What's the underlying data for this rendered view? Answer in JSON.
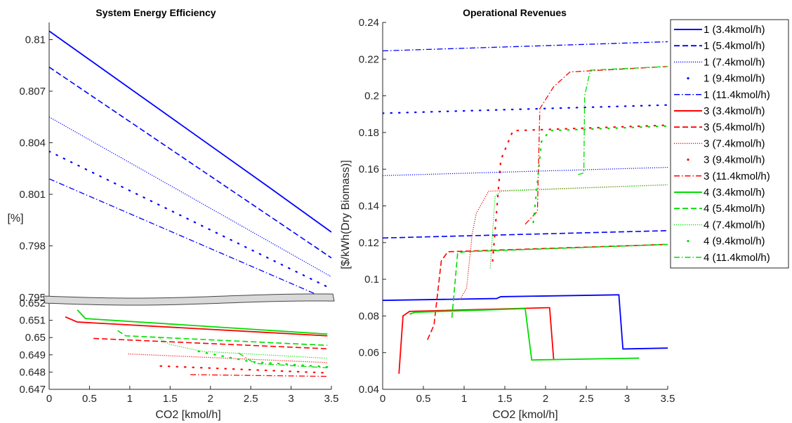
{
  "chart_data": [
    {
      "type": "line",
      "title": "System Energy Efficiency",
      "xlabel": "CO2 [kmol/h]",
      "ylabel": "[%]",
      "xlim": [
        0,
        3.5
      ],
      "x_ticks": [
        "0",
        "0.5",
        "1",
        "1.5",
        "2",
        "2.5",
        "3",
        "3.5"
      ],
      "broken_y_axis": true,
      "upper_ylim": [
        0.795,
        0.811
      ],
      "upper_y_ticks": [
        "0.795",
        "0.798",
        "0.801",
        "0.804",
        "0.807",
        "0.81"
      ],
      "lower_ylim": [
        0.647,
        0.652
      ],
      "lower_y_ticks": [
        "0.647",
        "0.648",
        "0.649",
        "0.65",
        "0.651",
        "0.652"
      ],
      "series": [
        {
          "name": "1 (3.4kmol/h)",
          "color": "#0000FF",
          "dash": "solid",
          "panel": "upper",
          "x": [
            0,
            2.7,
            3.5
          ],
          "y": [
            0.8105,
            0.8015,
            0.7988
          ]
        },
        {
          "name": "1 (5.4kmol/h)",
          "color": "#0000FF",
          "dash": "dashed",
          "panel": "upper",
          "x": [
            0,
            3.5
          ],
          "y": [
            0.8084,
            0.7973
          ]
        },
        {
          "name": "1 (7.4kmol/h)",
          "color": "#0000FF",
          "dash": "dotted",
          "panel": "upper",
          "x": [
            0,
            3.5
          ],
          "y": [
            0.8055,
            0.7962
          ]
        },
        {
          "name": "1 (9.4kmol/h)",
          "color": "#0000FF",
          "dash": "sparse-dotted",
          "panel": "upper",
          "x": [
            0,
            3.5
          ],
          "y": [
            0.8035,
            0.7955
          ]
        },
        {
          "name": "1 (11.4kmol/h)",
          "color": "#0000FF",
          "dash": "dashdot",
          "panel": "upper",
          "x": [
            0,
            3.5
          ],
          "y": [
            0.8019,
            0.7948
          ]
        },
        {
          "name": "3 (3.4kmol/h)",
          "color": "#FF0000",
          "dash": "solid",
          "panel": "lower",
          "x": [
            0.2,
            0.35,
            3.45
          ],
          "y": [
            0.6512,
            0.6509,
            0.6501
          ]
        },
        {
          "name": "3 (5.4kmol/h)",
          "color": "#FF0000",
          "dash": "dashed",
          "panel": "lower",
          "x": [
            0.55,
            3.45
          ],
          "y": [
            0.64995,
            0.64935
          ]
        },
        {
          "name": "3 (7.4kmol/h)",
          "color": "#FF0000",
          "dash": "dotted",
          "panel": "lower",
          "x": [
            0.98,
            3.45
          ],
          "y": [
            0.64905,
            0.64855
          ]
        },
        {
          "name": "3 (9.4kmol/h)",
          "color": "#FF0000",
          "dash": "sparse-dotted",
          "panel": "lower",
          "x": [
            1.38,
            3.45
          ],
          "y": [
            0.64835,
            0.64795
          ]
        },
        {
          "name": "3 (11.4kmol/h)",
          "color": "#FF0000",
          "dash": "dashdot",
          "panel": "lower",
          "x": [
            1.75,
            3.45
          ],
          "y": [
            0.64785,
            0.64775
          ]
        },
        {
          "name": "4 (3.4kmol/h)",
          "color": "#00DD00",
          "dash": "solid",
          "panel": "lower",
          "x": [
            0.35,
            0.45,
            3.45
          ],
          "y": [
            0.6516,
            0.6511,
            0.6502
          ]
        },
        {
          "name": "4 (5.4kmol/h)",
          "color": "#00DD00",
          "dash": "dashed",
          "panel": "lower",
          "x": [
            0.85,
            0.95,
            3.45
          ],
          "y": [
            0.6504,
            0.6501,
            0.64955
          ]
        },
        {
          "name": "4 (7.4kmol/h)",
          "color": "#00DD00",
          "dash": "dotted",
          "panel": "lower",
          "x": [
            1.35,
            1.5,
            1.9,
            3.45
          ],
          "y": [
            0.65,
            0.6496,
            0.6492,
            0.6488
          ]
        },
        {
          "name": "4 (9.4kmol/h)",
          "color": "#00DD00",
          "dash": "sparse-dotted",
          "panel": "lower",
          "x": [
            1.85,
            2.5,
            3.45
          ],
          "y": [
            0.6492,
            0.6486,
            0.6483
          ]
        },
        {
          "name": "4 (11.4kmol/h)",
          "color": "#00DD00",
          "dash": "dashdot",
          "panel": "lower",
          "x": [
            2.35,
            2.55,
            3.45
          ],
          "y": [
            0.6491,
            0.6485,
            0.64825
          ]
        }
      ]
    },
    {
      "type": "line",
      "title": "Operational Revenues",
      "xlabel": "CO2 [kmol/h]",
      "ylabel": "[$/kWh(Dry Biomass)]",
      "xlim": [
        0,
        3.5
      ],
      "ylim": [
        0.04,
        0.24
      ],
      "x_ticks": [
        "0",
        "0.5",
        "1",
        "1.5",
        "2",
        "2.5",
        "3",
        "3.5"
      ],
      "y_ticks": [
        "0.04",
        "0.06",
        "0.08",
        "0.1",
        "0.12",
        "0.14",
        "0.16",
        "0.18",
        "0.2",
        "0.22",
        "0.24"
      ],
      "series": [
        {
          "name": "1 (3.4kmol/h)",
          "color": "#0000FF",
          "dash": "solid",
          "x": [
            0,
            1.4,
            1.45,
            2.88,
            2.9,
            2.95,
            3.5
          ],
          "y": [
            0.0885,
            0.0895,
            0.0905,
            0.0915,
            0.0915,
            0.062,
            0.0625
          ]
        },
        {
          "name": "1 (5.4kmol/h)",
          "color": "#0000FF",
          "dash": "dashed",
          "x": [
            0,
            3.5
          ],
          "y": [
            0.1225,
            0.1265
          ]
        },
        {
          "name": "1 (7.4kmol/h)",
          "color": "#0000FF",
          "dash": "dotted",
          "x": [
            0,
            3.5
          ],
          "y": [
            0.1565,
            0.161
          ]
        },
        {
          "name": "1 (9.4kmol/h)",
          "color": "#0000FF",
          "dash": "sparse-dotted",
          "x": [
            0,
            3.5
          ],
          "y": [
            0.1905,
            0.195
          ]
        },
        {
          "name": "1 (11.4kmol/h)",
          "color": "#0000FF",
          "dash": "dashdot",
          "x": [
            0,
            3.5
          ],
          "y": [
            0.2245,
            0.2295
          ]
        },
        {
          "name": "3 (3.4kmol/h)",
          "color": "#FF0000",
          "dash": "solid",
          "x": [
            0.2,
            0.25,
            0.33,
            2.03,
            2.05,
            2.1
          ],
          "y": [
            0.0485,
            0.08,
            0.0825,
            0.0845,
            0.0845,
            0.056
          ]
        },
        {
          "name": "3 (5.4kmol/h)",
          "color": "#FF0000",
          "dash": "dashed",
          "x": [
            0.55,
            0.63,
            0.72,
            0.8,
            3.5
          ],
          "y": [
            0.067,
            0.075,
            0.11,
            0.115,
            0.119
          ]
        },
        {
          "name": "3 (7.4kmol/h)",
          "color": "#FF0000",
          "dash": "dotted",
          "x": [
            0.95,
            1.03,
            1.1,
            1.15,
            1.3,
            3.5
          ],
          "y": [
            0.089,
            0.095,
            0.125,
            0.136,
            0.148,
            0.1515
          ]
        },
        {
          "name": "3 (9.4kmol/h)",
          "color": "#FF0000",
          "dash": "sparse-dotted",
          "x": [
            1.35,
            1.45,
            1.6,
            3.5
          ],
          "y": [
            0.11,
            0.165,
            0.181,
            0.184
          ]
        },
        {
          "name": "3 (11.4kmol/h)",
          "color": "#FF0000",
          "dash": "dashdot",
          "x": [
            1.75,
            1.9,
            1.93,
            2.1,
            2.3,
            3.5
          ],
          "y": [
            0.13,
            0.137,
            0.193,
            0.205,
            0.213,
            0.216
          ]
        },
        {
          "name": "4 (3.4kmol/h)",
          "color": "#00DD00",
          "dash": "solid",
          "x": [
            0.33,
            0.4,
            1.75,
            1.83,
            3.15
          ],
          "y": [
            0.081,
            0.082,
            0.084,
            0.056,
            0.057
          ]
        },
        {
          "name": "4 (5.4kmol/h)",
          "color": "#00DD00",
          "dash": "dashed",
          "x": [
            0.85,
            0.92,
            1.0,
            3.5
          ],
          "y": [
            0.079,
            0.114,
            0.115,
            0.119
          ]
        },
        {
          "name": "4 (7.4kmol/h)",
          "color": "#00DD00",
          "dash": "dotted",
          "x": [
            1.32,
            1.38,
            1.45,
            3.5
          ],
          "y": [
            0.106,
            0.145,
            0.148,
            0.1515
          ]
        },
        {
          "name": "4 (9.4kmol/h)",
          "color": "#00DD00",
          "dash": "sparse-dotted",
          "x": [
            1.85,
            1.95,
            2.05,
            3.5
          ],
          "y": [
            0.131,
            0.175,
            0.181,
            0.1835
          ]
        },
        {
          "name": "4 (11.4kmol/h)",
          "color": "#00DD00",
          "dash": "dashdot",
          "x": [
            2.4,
            2.47,
            2.48,
            2.55,
            3.5
          ],
          "y": [
            0.157,
            0.158,
            0.2,
            0.214,
            0.216
          ]
        }
      ]
    }
  ],
  "legend": {
    "position": "right",
    "entries": [
      {
        "label": "1 (3.4kmol/h)",
        "color": "#0000FF",
        "dash": "solid"
      },
      {
        "label": "1 (5.4kmol/h)",
        "color": "#0000FF",
        "dash": "dashed"
      },
      {
        "label": "1 (7.4kmol/h)",
        "color": "#0000FF",
        "dash": "dotted"
      },
      {
        "label": "1 (9.4kmol/h)",
        "color": "#0000FF",
        "dash": "sparse-dotted"
      },
      {
        "label": "1 (11.4kmol/h)",
        "color": "#0000FF",
        "dash": "dashdot"
      },
      {
        "label": "3 (3.4kmol/h)",
        "color": "#FF0000",
        "dash": "solid"
      },
      {
        "label": "3 (5.4kmol/h)",
        "color": "#FF0000",
        "dash": "dashed"
      },
      {
        "label": "3 (7.4kmol/h)",
        "color": "#FF0000",
        "dash": "dotted"
      },
      {
        "label": "3 (9.4kmol/h)",
        "color": "#FF0000",
        "dash": "sparse-dotted"
      },
      {
        "label": "3 (11.4kmol/h)",
        "color": "#FF0000",
        "dash": "dashdot"
      },
      {
        "label": "4 (3.4kmol/h)",
        "color": "#00DD00",
        "dash": "solid"
      },
      {
        "label": "4 (5.4kmol/h)",
        "color": "#00DD00",
        "dash": "dashed"
      },
      {
        "label": "4 (7.4kmol/h)",
        "color": "#00DD00",
        "dash": "dotted"
      },
      {
        "label": "4 (9.4kmol/h)",
        "color": "#00DD00",
        "dash": "sparse-dotted"
      },
      {
        "label": "4 (11.4kmol/h)",
        "color": "#00DD00",
        "dash": "dashdot"
      }
    ]
  }
}
